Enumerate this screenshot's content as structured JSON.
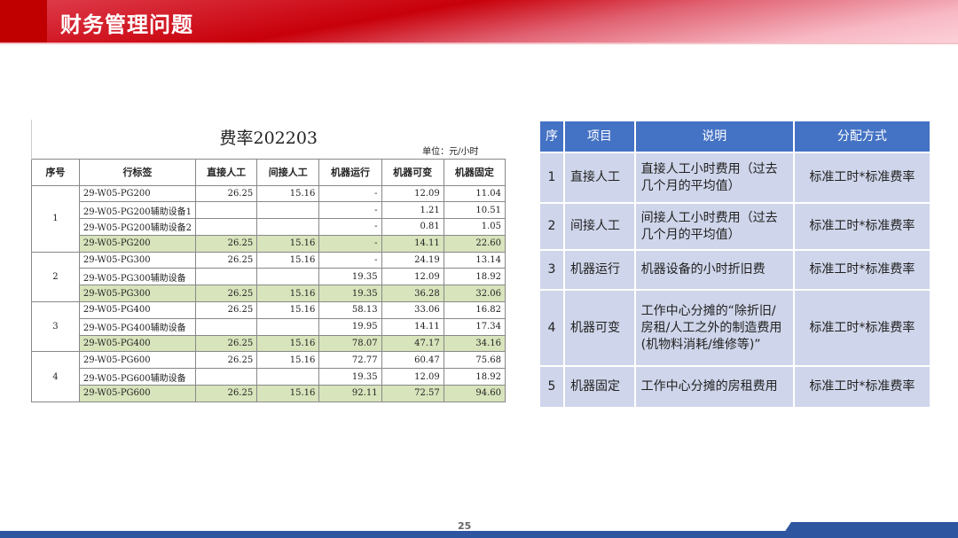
{
  "header": {
    "title": "财务管理问题"
  },
  "rate_table": {
    "title": "费率202203",
    "unit": "单位：元/小时",
    "columns": [
      "序号",
      "行标签",
      "直接人工",
      "间接人工",
      "机器运行",
      "机器可变",
      "机器固定"
    ],
    "groups": [
      {
        "no": "1",
        "rows": [
          [
            "29-W05-PG200",
            "26.25",
            "15.16",
            "-",
            "12.09",
            "11.04"
          ],
          [
            "29-W05-PG200辅助设备1",
            "",
            "",
            "-",
            "1.21",
            "10.51"
          ],
          [
            "29-W05-PG200辅助设备2",
            "",
            "",
            "-",
            "0.81",
            "1.05"
          ],
          [
            "29-W05-PG200",
            "26.25",
            "15.16",
            "-",
            "14.11",
            "22.60"
          ]
        ]
      },
      {
        "no": "2",
        "rows": [
          [
            "29-W05-PG300",
            "26.25",
            "15.16",
            "-",
            "24.19",
            "13.14"
          ],
          [
            "29-W05-PG300辅助设备",
            "",
            "",
            "19.35",
            "12.09",
            "18.92"
          ],
          [
            "29-W05-PG300",
            "26.25",
            "15.16",
            "19.35",
            "36.28",
            "32.06"
          ]
        ]
      },
      {
        "no": "3",
        "rows": [
          [
            "29-W05-PG400",
            "26.25",
            "15.16",
            "58.13",
            "33.06",
            "16.82"
          ],
          [
            "29-W05-PG400辅助设备",
            "",
            "",
            "19.95",
            "14.11",
            "17.34"
          ],
          [
            "29-W05-PG400",
            "26.25",
            "15.16",
            "78.07",
            "47.17",
            "34.16"
          ]
        ]
      },
      {
        "no": "4",
        "rows": [
          [
            "29-W05-PG600",
            "26.25",
            "15.16",
            "72.77",
            "60.47",
            "75.68"
          ],
          [
            "29-W05-PG600辅助设备",
            "",
            "",
            "19.35",
            "12.09",
            "18.92"
          ],
          [
            "29-W05-PG600",
            "26.25",
            "15.16",
            "92.11",
            "72.57",
            "94.60"
          ]
        ]
      }
    ]
  },
  "alloc_table": {
    "columns": [
      "序",
      "项目",
      "说明",
      "分配方式"
    ],
    "rows": [
      [
        "1",
        "直接人工",
        "直接人工小时费用（过去几个月的平均值）",
        "标准工时*标准费率"
      ],
      [
        "2",
        "间接人工",
        "间接人工小时费用（过去几个月的平均值）",
        "标准工时*标准费率"
      ],
      [
        "3",
        "机器运行",
        "机器设备的小时折旧费",
        "标准工时*标准费率"
      ],
      [
        "4",
        "机器可变",
        "工作中心分摊的“除折旧/房租/人工之外的制造费用(机物料消耗/维修等)”",
        "标准工时*标准费率"
      ],
      [
        "5",
        "机器固定",
        "工作中心分摊的房租费用",
        "标准工时*标准费率"
      ]
    ]
  },
  "colors": {
    "header_red": "#c00000",
    "table_header_blue": "#4472c4",
    "row_lavender": "#cfd5ea",
    "subtotal_green": "#d8e4bc",
    "footer_blue": "#2e55a0"
  },
  "footer": {
    "page": "25"
  }
}
